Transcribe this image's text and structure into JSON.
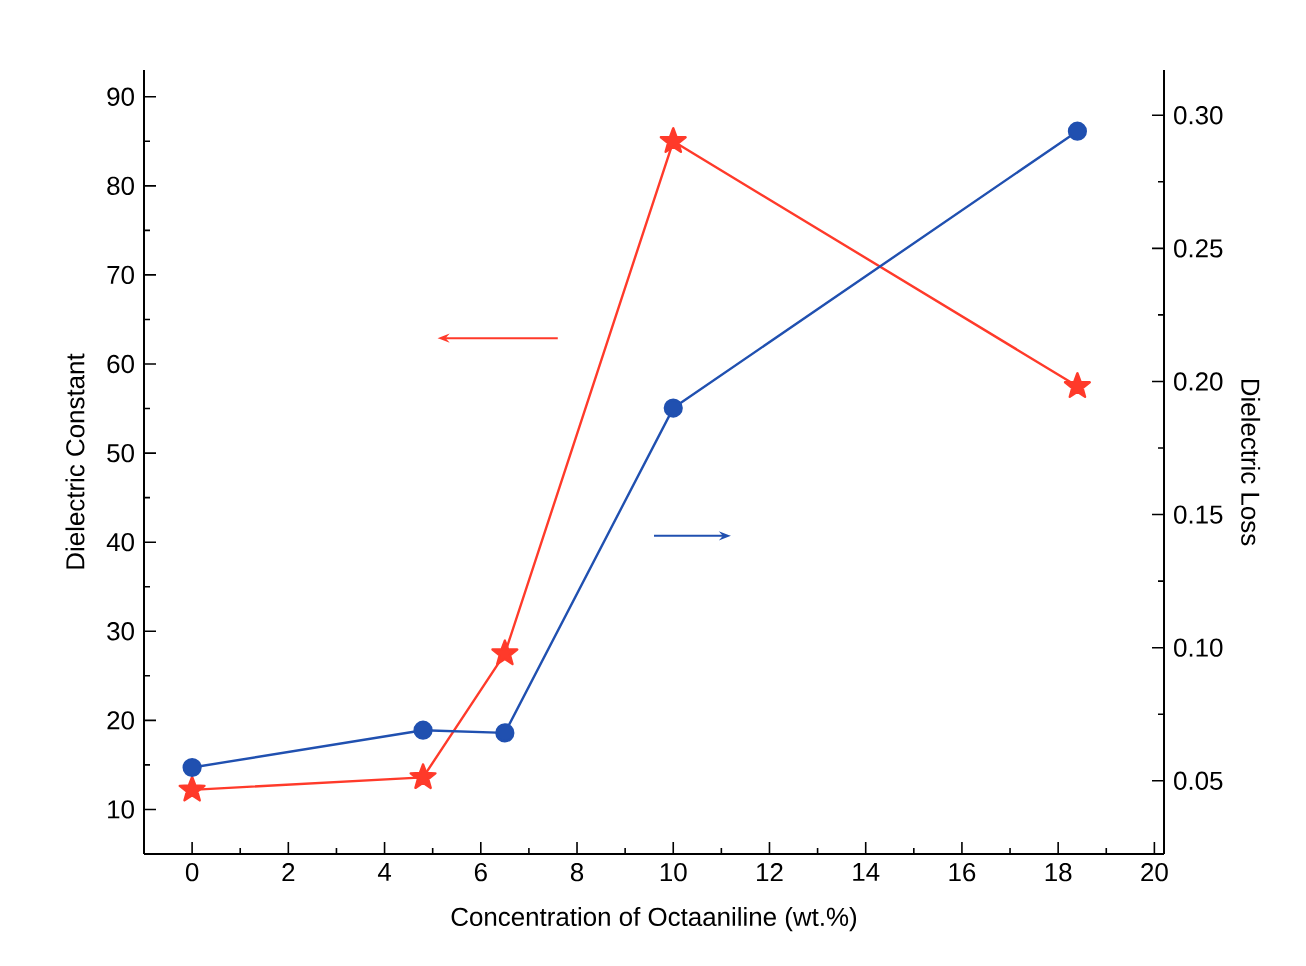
{
  "chart_data": {
    "type": "line",
    "xlabel": "Concentration of Octaaniline (wt.%)",
    "ylabel": "Dielectric Constant",
    "y2label": "Dielectric Loss",
    "x": [
      0,
      4.8,
      6.5,
      10,
      18.4
    ],
    "series": [
      {
        "color": "#ff3a2a",
        "marker": "star",
        "values": [
          12.2,
          13.6,
          27.5,
          85,
          57.5
        ]
      },
      {
        "color": "#2050b0",
        "marker": "circle",
        "axis": "y2",
        "values": [
          0.055,
          0.069,
          0.068,
          0.19,
          0.294
        ]
      }
    ],
    "xlim": [
      -1,
      20.2
    ],
    "xticks": [
      0,
      2,
      4,
      6,
      8,
      10,
      12,
      14,
      16,
      18,
      20
    ],
    "ylim": [
      5,
      93
    ],
    "yticks": [
      10,
      20,
      30,
      40,
      50,
      60,
      70,
      80,
      90
    ],
    "y2lim": [
      0.0225,
      0.317
    ],
    "y2ticks": [
      {
        "value": 0.05,
        "label": "0.05"
      },
      {
        "value": 0.1,
        "label": "0.10"
      },
      {
        "value": 0.15,
        "label": "0.15"
      },
      {
        "value": 0.2,
        "label": "0.20"
      },
      {
        "value": 0.25,
        "label": "0.25"
      },
      {
        "value": 0.3,
        "label": "0.30"
      }
    ],
    "grid": false,
    "line_style": "solid"
  }
}
